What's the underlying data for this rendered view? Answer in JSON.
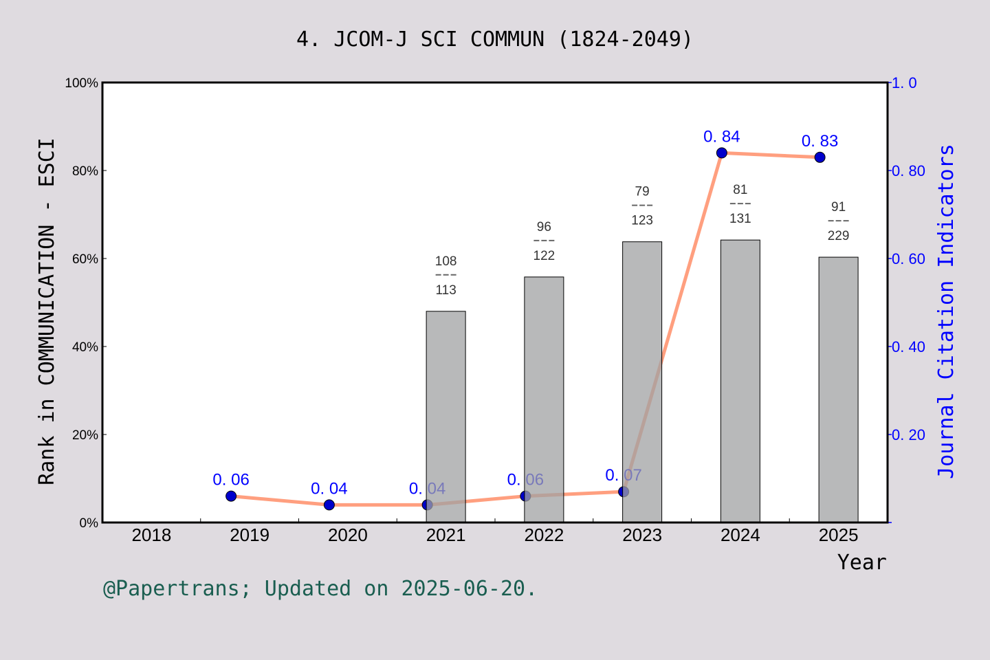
{
  "chart_data": {
    "type": "bar+line",
    "title": "4. JCOM-J SCI COMMUN (1824-2049)",
    "xlabel": "Year",
    "ylabel_left": "Rank in COMMUNICATION - ESCI",
    "ylabel_right": "Journal Citation Indicators",
    "categories": [
      "2018",
      "2019",
      "2020",
      "2021",
      "2022",
      "2023",
      "2024",
      "2025"
    ],
    "ylim_left": [
      0,
      100
    ],
    "ylim_right": [
      0,
      1.0
    ],
    "left_ticks": [
      "0%",
      "20%",
      "40%",
      "60%",
      "80%",
      "100%"
    ],
    "right_ticks": [
      "0. 20",
      "0. 40",
      "0. 60",
      "0. 80",
      "1. 0"
    ],
    "bars": {
      "values": [
        null,
        null,
        null,
        48,
        55.8,
        63.8,
        64.2,
        60.3
      ],
      "labels": [
        null,
        null,
        null,
        {
          "rank": "108",
          "total": "113"
        },
        {
          "rank": "96",
          "total": "122"
        },
        {
          "rank": "79",
          "total": "123"
        },
        {
          "rank": "81",
          "total": "131"
        },
        {
          "rank": "91",
          "total": "229"
        }
      ],
      "color": "#b8b9bb"
    },
    "line": {
      "values": [
        null,
        0.06,
        0.04,
        0.04,
        0.06,
        0.07,
        0.84,
        0.83
      ],
      "labels": [
        null,
        "0. 06",
        "0. 04",
        "0. 04",
        "0. 06",
        "0. 07",
        "0. 84",
        "0. 83"
      ],
      "line_color": "#ff9f7f",
      "marker_color": "#0000cc"
    },
    "grid": false,
    "footer": "@Papertrans; Updated on 2025-06-20.",
    "colors": {
      "background": "#dfdbe0",
      "right_axis": "#0000ff",
      "footer": "#1a5e50"
    }
  }
}
